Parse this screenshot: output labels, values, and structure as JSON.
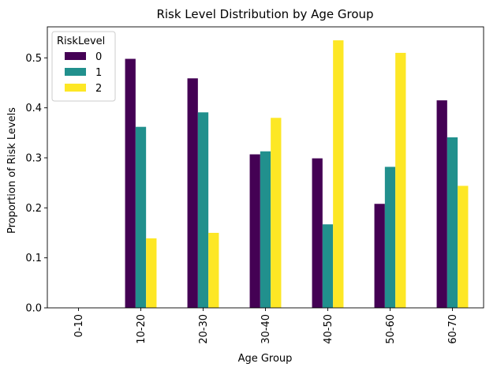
{
  "chart_data": {
    "type": "bar",
    "title": "Risk Level Distribution by Age Group",
    "xlabel": "Age Group",
    "ylabel": "Proportion of Risk Levels",
    "categories": [
      "0-10",
      "10-20",
      "20-30",
      "30-40",
      "40-50",
      "50-60",
      "60-70"
    ],
    "series": [
      {
        "name": "0",
        "color": "#440154",
        "values": [
          0,
          0.498,
          0.459,
          0.307,
          0.299,
          0.208,
          0.415
        ]
      },
      {
        "name": "1",
        "color": "#21908d",
        "values": [
          0,
          0.362,
          0.391,
          0.313,
          0.167,
          0.282,
          0.341
        ]
      },
      {
        "name": "2",
        "color": "#fde725",
        "values": [
          0,
          0.139,
          0.15,
          0.38,
          0.535,
          0.51,
          0.244
        ]
      }
    ],
    "yticks": [
      0.0,
      0.1,
      0.2,
      0.3,
      0.4,
      0.5
    ],
    "ytick_labels": [
      "0.0",
      "0.1",
      "0.2",
      "0.3",
      "0.4",
      "0.5"
    ],
    "ylim": [
      0,
      0.562
    ],
    "grid": false,
    "legend": {
      "title": "RiskLevel",
      "placement": "top-left"
    }
  }
}
